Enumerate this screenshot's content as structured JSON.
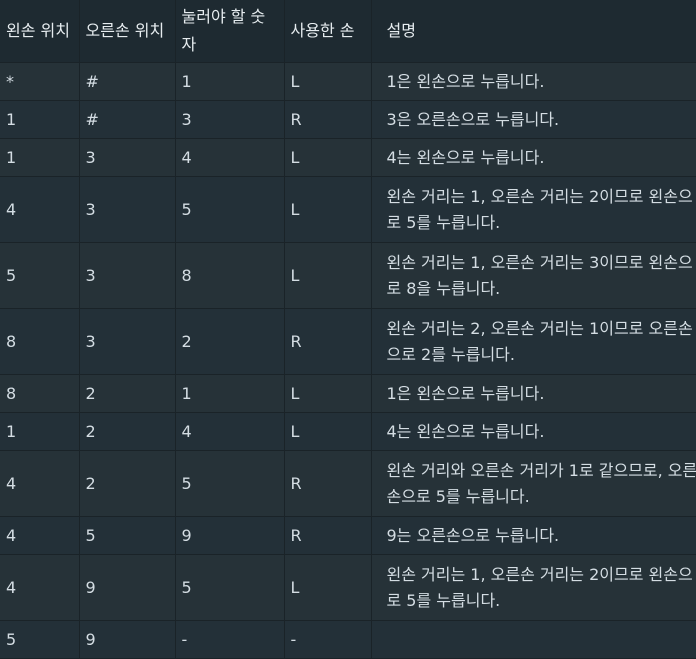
{
  "table": {
    "headers": [
      "왼손 위치",
      "오른손 위치",
      "눌러야 할 숫자",
      "사용한 손",
      "설명"
    ],
    "rows": [
      {
        "left": "*",
        "right": "#",
        "num": "1",
        "hand": "L",
        "desc": "1은 왼손으로 누릅니다."
      },
      {
        "left": "1",
        "right": "#",
        "num": "3",
        "hand": "R",
        "desc": "3은 오른손으로 누릅니다."
      },
      {
        "left": "1",
        "right": "3",
        "num": "4",
        "hand": "L",
        "desc": "4는 왼손으로 누릅니다."
      },
      {
        "left": "4",
        "right": "3",
        "num": "5",
        "hand": "L",
        "desc": "왼손 거리는 1, 오른손 거리는 2이므로 왼손으로 5를 누릅니다."
      },
      {
        "left": "5",
        "right": "3",
        "num": "8",
        "hand": "L",
        "desc": "왼손 거리는 1, 오른손 거리는 3이므로 왼손으로 8을 누릅니다."
      },
      {
        "left": "8",
        "right": "3",
        "num": "2",
        "hand": "R",
        "desc": "왼손 거리는 2, 오른손 거리는 1이므로 오른손으로 2를 누릅니다."
      },
      {
        "left": "8",
        "right": "2",
        "num": "1",
        "hand": "L",
        "desc": "1은 왼손으로 누릅니다."
      },
      {
        "left": "1",
        "right": "2",
        "num": "4",
        "hand": "L",
        "desc": "4는 왼손으로 누릅니다."
      },
      {
        "left": "4",
        "right": "2",
        "num": "5",
        "hand": "R",
        "desc": "왼손 거리와 오른손 거리가 1로 같으므로, 오른손으로 5를 누릅니다."
      },
      {
        "left": "4",
        "right": "5",
        "num": "9",
        "hand": "R",
        "desc": "9는 오른손으로 누릅니다."
      },
      {
        "left": "4",
        "right": "9",
        "num": "5",
        "hand": "L",
        "desc": "왼손 거리는 1, 오른손 거리는 2이므로 왼손으로 5를 누릅니다."
      },
      {
        "left": "5",
        "right": "9",
        "num": "-",
        "hand": "-",
        "desc": ""
      }
    ]
  },
  "colors": {
    "background": "#263238",
    "header_background": "#1e2a31",
    "border": "#1a2328",
    "text": "#d4dde3"
  }
}
